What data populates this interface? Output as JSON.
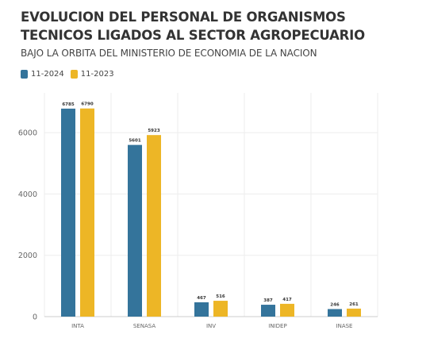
{
  "chart_data": {
    "type": "bar",
    "title": "EVOLUCION DEL PERSONAL DE ORGANISMOS TECNICOS LIGADOS AL SECTOR AGROPECUARIO",
    "subtitle": "BAJO LA ORBITA DEL MINISTERIO DE ECONOMIA DE LA NACION",
    "categories": [
      "INTA",
      "SENASA",
      "INV",
      "INIDEP",
      "INASE"
    ],
    "series": [
      {
        "name": "11-2024",
        "color": "#34749b",
        "values": [
          6785,
          5601,
          467,
          387,
          246
        ],
        "labels": [
          "6785",
          "5601",
          "467",
          "387",
          "246"
        ]
      },
      {
        "name": "11-2023",
        "color": "#edb626",
        "values": [
          6790,
          5923,
          516,
          417,
          261
        ],
        "labels": [
          "6790",
          "5923",
          "516",
          "417",
          "261"
        ]
      }
    ],
    "yticks": [
      0,
      2000,
      4000,
      6000
    ],
    "ytick_labels": [
      "0",
      "2000",
      "4000",
      "6000"
    ],
    "ylim": [
      0,
      7300
    ],
    "xlabel": "",
    "ylabel": "",
    "grid": true,
    "legend_position": "top-left"
  }
}
